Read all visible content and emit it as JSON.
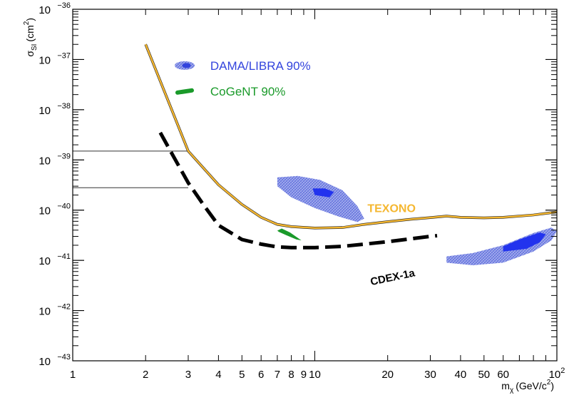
{
  "chart_data": {
    "type": "line",
    "x_axis": {
      "label_main": "m",
      "label_sub": "χ",
      "label_unit": "(GeV/c",
      "label_unit_sup": "2",
      "label_close": ")",
      "scale": "log",
      "range": [
        1,
        100
      ],
      "tick_labels": [
        {
          "v": 1,
          "t": "1"
        },
        {
          "v": 2,
          "t": "2"
        },
        {
          "v": 3,
          "t": "3"
        },
        {
          "v": 4,
          "t": "4"
        },
        {
          "v": 5,
          "t": "5"
        },
        {
          "v": 6,
          "t": "6"
        },
        {
          "v": 7,
          "t": "7"
        },
        {
          "v": 8,
          "t": "8"
        },
        {
          "v": 9,
          "t": "9"
        },
        {
          "v": 10,
          "t": "10"
        },
        {
          "v": 20,
          "t": "20"
        },
        {
          "v": 30,
          "t": "30"
        },
        {
          "v": 40,
          "t": "40"
        },
        {
          "v": 50,
          "t": "50"
        },
        {
          "v": 60,
          "t": "60"
        },
        {
          "v": 100,
          "t": "10",
          "sup": "2"
        }
      ]
    },
    "y_axis": {
      "label_main": "σ",
      "label_sub": "SI",
      "label_unit": "(cm",
      "label_unit_sup": "2",
      "label_close": ")",
      "scale": "log",
      "range": [
        1e-43,
        1e-36
      ],
      "tick_labels": [
        {
          "v": -43,
          "base": "10",
          "sup": "−43"
        },
        {
          "v": -42,
          "base": "10",
          "sup": "−42"
        },
        {
          "v": -41,
          "base": "10",
          "sup": "−41"
        },
        {
          "v": -40,
          "base": "10",
          "sup": "−40"
        },
        {
          "v": -39,
          "base": "10",
          "sup": "−39"
        },
        {
          "v": -38,
          "base": "10",
          "sup": "−38"
        },
        {
          "v": -37,
          "base": "10",
          "sup": "−37"
        },
        {
          "v": -36,
          "base": "10",
          "sup": "−36"
        }
      ]
    },
    "legend": {
      "placement": "top-left inside",
      "entries": [
        {
          "label": "DAMA/LIBRA 90%",
          "color": "#3344dd"
        },
        {
          "label": "CoGeNT 90%",
          "color": "#1a9a2a"
        }
      ]
    },
    "series": [
      {
        "name": "TEXONO",
        "color": "#f5b730",
        "style": "solid",
        "points": [
          [
            2.0,
            2e-37
          ],
          [
            3.0,
            1.5e-39
          ],
          [
            4.0,
            3.2e-40
          ],
          [
            5.0,
            1.3e-40
          ],
          [
            6.0,
            7.2e-41
          ],
          [
            7.0,
            5.2e-41
          ],
          [
            8.0,
            4.7e-41
          ],
          [
            10.0,
            4.4e-41
          ],
          [
            13.0,
            4.5e-41
          ],
          [
            16.0,
            5.2e-41
          ],
          [
            20.0,
            5.9e-41
          ],
          [
            25.0,
            6.6e-41
          ],
          [
            30.0,
            7.1e-41
          ],
          [
            35.0,
            7.6e-41
          ],
          [
            40.0,
            7.2e-41
          ],
          [
            50.0,
            7e-41
          ],
          [
            60.0,
            7.2e-41
          ],
          [
            80.0,
            8e-41
          ],
          [
            100.0,
            9.2e-41
          ]
        ]
      },
      {
        "name": "CDEX-1a",
        "color": "#000000",
        "style": "dashed",
        "points": [
          [
            2.3,
            3.5e-39
          ],
          [
            2.6,
            1.2e-39
          ],
          [
            3.0,
            3.5e-40
          ],
          [
            3.5,
            1.2e-40
          ],
          [
            4.0,
            5e-41
          ],
          [
            5.0,
            2.6e-41
          ],
          [
            6.0,
            2.1e-41
          ],
          [
            7.0,
            1.85e-41
          ],
          [
            8.0,
            1.8e-41
          ],
          [
            10.0,
            1.8e-41
          ],
          [
            13.0,
            1.9e-41
          ],
          [
            16.0,
            2.1e-41
          ],
          [
            20.0,
            2.35e-41
          ],
          [
            25.0,
            2.7e-41
          ],
          [
            30.0,
            3e-41
          ],
          [
            32.0,
            3.1e-41
          ]
        ]
      }
    ],
    "regions": [
      {
        "name": "DAMA/LIBRA 90%",
        "outer": [
          [
            7.0,
            4.5e-40
          ],
          [
            8.5,
            4.8e-40
          ],
          [
            10.5,
            4e-40
          ],
          [
            13.0,
            2.5e-40
          ],
          [
            15.0,
            1.2e-40
          ],
          [
            16.0,
            6.8e-41
          ],
          [
            15.0,
            5.8e-41
          ],
          [
            12.5,
            7.5e-41
          ],
          [
            10.0,
            1.1e-40
          ],
          [
            8.0,
            1.8e-40
          ],
          [
            7.0,
            3e-40
          ]
        ],
        "inner": [
          [
            9.8,
            2.7e-40
          ],
          [
            11.0,
            2.7e-40
          ],
          [
            12.0,
            2.3e-40
          ],
          [
            11.5,
            1.8e-40
          ],
          [
            10.0,
            2e-40
          ]
        ],
        "outer_color": "#8a95dd",
        "inner_color": "#2233ee"
      },
      {
        "name": "DAMA/LIBRA 90% (high mass)",
        "outer": [
          [
            35.0,
            9e-42
          ],
          [
            45.0,
            8e-42
          ],
          [
            60.0,
            9e-42
          ],
          [
            80.0,
            1.5e-41
          ],
          [
            95.0,
            2.5e-41
          ],
          [
            100.0,
            3.8e-41
          ],
          [
            95.0,
            4.5e-41
          ],
          [
            80.0,
            3.5e-41
          ],
          [
            60.0,
            2e-41
          ],
          [
            45.0,
            1.4e-41
          ],
          [
            35.0,
            1.2e-41
          ]
        ],
        "inner": [
          [
            60.0,
            1.5e-41
          ],
          [
            75.0,
            1.7e-41
          ],
          [
            85.0,
            2.3e-41
          ],
          [
            90.0,
            3.3e-41
          ],
          [
            85.0,
            3.6e-41
          ],
          [
            70.0,
            2.6e-41
          ],
          [
            60.0,
            1.9e-41
          ]
        ],
        "outer_color": "#8a95dd",
        "inner_color": "#2233ee"
      },
      {
        "name": "CoGeNT 90%",
        "outer": [
          [
            7.0,
            3.9e-41
          ],
          [
            7.3,
            4.3e-41
          ],
          [
            7.9,
            3.6e-41
          ],
          [
            8.6,
            2.7e-41
          ],
          [
            8.8,
            2.5e-41
          ],
          [
            8.4,
            2.6e-41
          ],
          [
            7.6,
            3.2e-41
          ],
          [
            7.1,
            3.7e-41
          ]
        ],
        "color": "#1a9a2a"
      }
    ],
    "reference_lines": [
      {
        "y": 1.5e-39,
        "x_from": 1.0,
        "x_to": 3.0
      },
      {
        "y": 2.8e-40,
        "x_from": 1.0,
        "x_to": 3.0
      }
    ],
    "annotations": [
      {
        "text": "TEXONO",
        "color": "#f5b730"
      },
      {
        "text": "CDEX-1a",
        "color": "#000000"
      }
    ],
    "grid": false
  }
}
